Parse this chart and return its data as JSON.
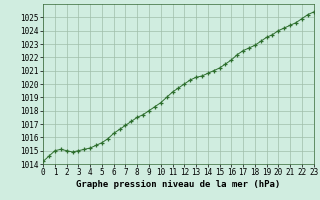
{
  "title": "Graphe pression niveau de la mer (hPa)",
  "x_values": [
    0,
    0.5,
    1,
    1.5,
    2,
    2.5,
    3,
    3.5,
    4,
    4.5,
    5,
    5.5,
    6,
    6.5,
    7,
    7.5,
    8,
    8.5,
    9,
    9.5,
    10,
    10.5,
    11,
    11.5,
    12,
    12.5,
    13,
    13.5,
    14,
    14.5,
    15,
    15.5,
    16,
    16.5,
    17,
    17.5,
    18,
    18.5,
    19,
    19.5,
    20,
    20.5,
    21,
    21.5,
    22,
    22.5,
    23
  ],
  "y_values": [
    1014.2,
    1014.6,
    1015.0,
    1015.1,
    1015.0,
    1014.9,
    1015.0,
    1015.1,
    1015.2,
    1015.4,
    1015.6,
    1015.9,
    1016.3,
    1016.6,
    1016.9,
    1017.2,
    1017.5,
    1017.7,
    1018.0,
    1018.3,
    1018.6,
    1019.0,
    1019.4,
    1019.7,
    1020.0,
    1020.3,
    1020.5,
    1020.6,
    1020.8,
    1021.0,
    1021.2,
    1021.5,
    1021.8,
    1022.2,
    1022.5,
    1022.7,
    1022.9,
    1023.2,
    1023.5,
    1023.7,
    1024.0,
    1024.2,
    1024.4,
    1024.6,
    1024.9,
    1025.2,
    1025.4
  ],
  "xlim": [
    0,
    23
  ],
  "ylim": [
    1014,
    1026
  ],
  "yticks": [
    1014,
    1015,
    1016,
    1017,
    1018,
    1019,
    1020,
    1021,
    1022,
    1023,
    1024,
    1025
  ],
  "xticks": [
    0,
    1,
    2,
    3,
    4,
    5,
    6,
    7,
    8,
    9,
    10,
    11,
    12,
    13,
    14,
    15,
    16,
    17,
    18,
    19,
    20,
    21,
    22,
    23
  ],
  "line_color": "#2d6e2d",
  "marker_color": "#2d6e2d",
  "bg_color": "#d0ede0",
  "grid_color": "#a0bfaa",
  "title_color": "#000000",
  "tick_label_color": "#000000",
  "tick_fontsize": 5.5,
  "xlabel_fontsize": 6.5
}
